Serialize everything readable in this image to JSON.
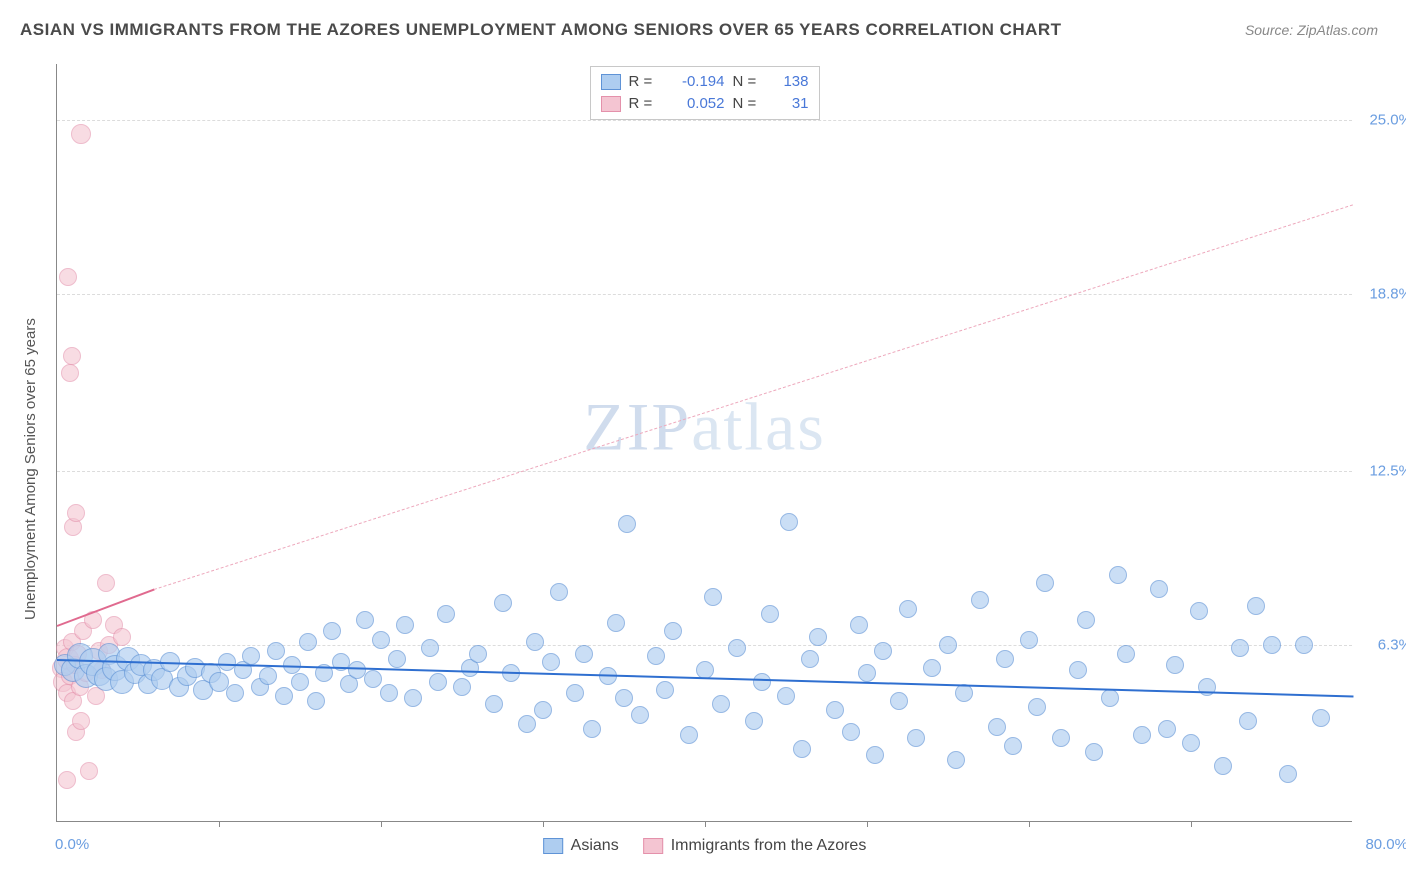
{
  "title": "ASIAN VS IMMIGRANTS FROM THE AZORES UNEMPLOYMENT AMONG SENIORS OVER 65 YEARS CORRELATION CHART",
  "source": "Source: ZipAtlas.com",
  "y_axis_label": "Unemployment Among Seniors over 65 years",
  "watermark": {
    "bold": "ZIP",
    "thin": "atlas"
  },
  "chart": {
    "type": "scatter",
    "background_color": "#ffffff",
    "grid_color": "#dcdcdc",
    "xlim": [
      0,
      80
    ],
    "ylim": [
      0,
      27
    ],
    "y_ticks": [
      {
        "v": 6.3,
        "label": "6.3%"
      },
      {
        "v": 12.5,
        "label": "12.5%"
      },
      {
        "v": 18.8,
        "label": "18.8%"
      },
      {
        "v": 25.0,
        "label": "25.0%"
      }
    ],
    "x_tick_positions": [
      10,
      20,
      30,
      40,
      50,
      60,
      70
    ],
    "x_labels": [
      {
        "v": 0,
        "label": "0.0%",
        "align": "left"
      },
      {
        "v": 80,
        "label": "80.0%",
        "align": "right"
      }
    ]
  },
  "series": {
    "asians": {
      "label": "Asians",
      "fill": "#aecdf0",
      "stroke": "#5f93d6",
      "fill_opacity": 0.65,
      "R": "-0.194",
      "N": "138",
      "trend": {
        "x1": 0,
        "y1": 5.8,
        "x2": 80,
        "y2": 4.5,
        "color": "#2f6fd0",
        "dashed": false,
        "width": 2
      },
      "points": [
        {
          "x": 0.5,
          "y": 5.6,
          "r": 11
        },
        {
          "x": 1.0,
          "y": 5.4,
          "r": 12
        },
        {
          "x": 1.4,
          "y": 5.9,
          "r": 13
        },
        {
          "x": 1.8,
          "y": 5.2,
          "r": 12
        },
        {
          "x": 2.2,
          "y": 5.7,
          "r": 14
        },
        {
          "x": 2.6,
          "y": 5.3,
          "r": 13
        },
        {
          "x": 3.0,
          "y": 5.1,
          "r": 12
        },
        {
          "x": 3.2,
          "y": 6.0,
          "r": 11
        },
        {
          "x": 3.6,
          "y": 5.5,
          "r": 13
        },
        {
          "x": 4.0,
          "y": 5.0,
          "r": 12
        },
        {
          "x": 4.4,
          "y": 5.8,
          "r": 12
        },
        {
          "x": 4.8,
          "y": 5.3,
          "r": 11
        },
        {
          "x": 5.2,
          "y": 5.6,
          "r": 11
        },
        {
          "x": 5.6,
          "y": 4.9,
          "r": 10
        },
        {
          "x": 6.0,
          "y": 5.4,
          "r": 11
        },
        {
          "x": 6.5,
          "y": 5.1,
          "r": 11
        },
        {
          "x": 7.0,
          "y": 5.7,
          "r": 10
        },
        {
          "x": 7.5,
          "y": 4.8,
          "r": 10
        },
        {
          "x": 8.0,
          "y": 5.2,
          "r": 10
        },
        {
          "x": 8.5,
          "y": 5.5,
          "r": 10
        },
        {
          "x": 9.0,
          "y": 4.7,
          "r": 10
        },
        {
          "x": 9.5,
          "y": 5.3,
          "r": 10
        },
        {
          "x": 10.0,
          "y": 5.0,
          "r": 10
        },
        {
          "x": 10.5,
          "y": 5.7,
          "r": 9
        },
        {
          "x": 11.0,
          "y": 4.6,
          "r": 9
        },
        {
          "x": 11.5,
          "y": 5.4,
          "r": 9
        },
        {
          "x": 12.0,
          "y": 5.9,
          "r": 9
        },
        {
          "x": 12.5,
          "y": 4.8,
          "r": 9
        },
        {
          "x": 13.0,
          "y": 5.2,
          "r": 9
        },
        {
          "x": 13.5,
          "y": 6.1,
          "r": 9
        },
        {
          "x": 14.0,
          "y": 4.5,
          "r": 9
        },
        {
          "x": 14.5,
          "y": 5.6,
          "r": 9
        },
        {
          "x": 15.0,
          "y": 5.0,
          "r": 9
        },
        {
          "x": 15.5,
          "y": 6.4,
          "r": 9
        },
        {
          "x": 16.0,
          "y": 4.3,
          "r": 9
        },
        {
          "x": 16.5,
          "y": 5.3,
          "r": 9
        },
        {
          "x": 17.0,
          "y": 6.8,
          "r": 9
        },
        {
          "x": 17.5,
          "y": 5.7,
          "r": 9
        },
        {
          "x": 18.0,
          "y": 4.9,
          "r": 9
        },
        {
          "x": 18.5,
          "y": 5.4,
          "r": 9
        },
        {
          "x": 19.0,
          "y": 7.2,
          "r": 9
        },
        {
          "x": 19.5,
          "y": 5.1,
          "r": 9
        },
        {
          "x": 20.0,
          "y": 6.5,
          "r": 9
        },
        {
          "x": 20.5,
          "y": 4.6,
          "r": 9
        },
        {
          "x": 21.0,
          "y": 5.8,
          "r": 9
        },
        {
          "x": 21.5,
          "y": 7.0,
          "r": 9
        },
        {
          "x": 22.0,
          "y": 4.4,
          "r": 9
        },
        {
          "x": 23.0,
          "y": 6.2,
          "r": 9
        },
        {
          "x": 23.5,
          "y": 5.0,
          "r": 9
        },
        {
          "x": 24.0,
          "y": 7.4,
          "r": 9
        },
        {
          "x": 25.0,
          "y": 4.8,
          "r": 9
        },
        {
          "x": 25.5,
          "y": 5.5,
          "r": 9
        },
        {
          "x": 26.0,
          "y": 6.0,
          "r": 9
        },
        {
          "x": 27.0,
          "y": 4.2,
          "r": 9
        },
        {
          "x": 27.5,
          "y": 7.8,
          "r": 9
        },
        {
          "x": 28.0,
          "y": 5.3,
          "r": 9
        },
        {
          "x": 29.0,
          "y": 3.5,
          "r": 9
        },
        {
          "x": 29.5,
          "y": 6.4,
          "r": 9
        },
        {
          "x": 30.0,
          "y": 4.0,
          "r": 9
        },
        {
          "x": 30.5,
          "y": 5.7,
          "r": 9
        },
        {
          "x": 31.0,
          "y": 8.2,
          "r": 9
        },
        {
          "x": 32.0,
          "y": 4.6,
          "r": 9
        },
        {
          "x": 32.5,
          "y": 6.0,
          "r": 9
        },
        {
          "x": 33.0,
          "y": 3.3,
          "r": 9
        },
        {
          "x": 34.0,
          "y": 5.2,
          "r": 9
        },
        {
          "x": 34.5,
          "y": 7.1,
          "r": 9
        },
        {
          "x": 35.0,
          "y": 4.4,
          "r": 9
        },
        {
          "x": 35.2,
          "y": 10.6,
          "r": 9
        },
        {
          "x": 36.0,
          "y": 3.8,
          "r": 9
        },
        {
          "x": 37.0,
          "y": 5.9,
          "r": 9
        },
        {
          "x": 37.5,
          "y": 4.7,
          "r": 9
        },
        {
          "x": 38.0,
          "y": 6.8,
          "r": 9
        },
        {
          "x": 39.0,
          "y": 3.1,
          "r": 9
        },
        {
          "x": 40.0,
          "y": 5.4,
          "r": 9
        },
        {
          "x": 40.5,
          "y": 8.0,
          "r": 9
        },
        {
          "x": 41.0,
          "y": 4.2,
          "r": 9
        },
        {
          "x": 42.0,
          "y": 6.2,
          "r": 9
        },
        {
          "x": 43.0,
          "y": 3.6,
          "r": 9
        },
        {
          "x": 43.5,
          "y": 5.0,
          "r": 9
        },
        {
          "x": 44.0,
          "y": 7.4,
          "r": 9
        },
        {
          "x": 45.0,
          "y": 4.5,
          "r": 9
        },
        {
          "x": 45.2,
          "y": 10.7,
          "r": 9
        },
        {
          "x": 46.0,
          "y": 2.6,
          "r": 9
        },
        {
          "x": 46.5,
          "y": 5.8,
          "r": 9
        },
        {
          "x": 47.0,
          "y": 6.6,
          "r": 9
        },
        {
          "x": 48.0,
          "y": 4.0,
          "r": 9
        },
        {
          "x": 49.0,
          "y": 3.2,
          "r": 9
        },
        {
          "x": 49.5,
          "y": 7.0,
          "r": 9
        },
        {
          "x": 50.0,
          "y": 5.3,
          "r": 9
        },
        {
          "x": 50.5,
          "y": 2.4,
          "r": 9
        },
        {
          "x": 51.0,
          "y": 6.1,
          "r": 9
        },
        {
          "x": 52.0,
          "y": 4.3,
          "r": 9
        },
        {
          "x": 52.5,
          "y": 7.6,
          "r": 9
        },
        {
          "x": 53.0,
          "y": 3.0,
          "r": 9
        },
        {
          "x": 54.0,
          "y": 5.5,
          "r": 9
        },
        {
          "x": 55.0,
          "y": 6.3,
          "r": 9
        },
        {
          "x": 55.5,
          "y": 2.2,
          "r": 9
        },
        {
          "x": 56.0,
          "y": 4.6,
          "r": 9
        },
        {
          "x": 57.0,
          "y": 7.9,
          "r": 9
        },
        {
          "x": 58.0,
          "y": 3.4,
          "r": 9
        },
        {
          "x": 58.5,
          "y": 5.8,
          "r": 9
        },
        {
          "x": 59.0,
          "y": 2.7,
          "r": 9
        },
        {
          "x": 60.0,
          "y": 6.5,
          "r": 9
        },
        {
          "x": 60.5,
          "y": 4.1,
          "r": 9
        },
        {
          "x": 61.0,
          "y": 8.5,
          "r": 9
        },
        {
          "x": 62.0,
          "y": 3.0,
          "r": 9
        },
        {
          "x": 63.0,
          "y": 5.4,
          "r": 9
        },
        {
          "x": 63.5,
          "y": 7.2,
          "r": 9
        },
        {
          "x": 64.0,
          "y": 2.5,
          "r": 9
        },
        {
          "x": 65.0,
          "y": 4.4,
          "r": 9
        },
        {
          "x": 65.5,
          "y": 8.8,
          "r": 9
        },
        {
          "x": 66.0,
          "y": 6.0,
          "r": 9
        },
        {
          "x": 67.0,
          "y": 3.1,
          "r": 9
        },
        {
          "x": 68.0,
          "y": 8.3,
          "r": 9
        },
        {
          "x": 68.5,
          "y": 3.3,
          "r": 9
        },
        {
          "x": 69.0,
          "y": 5.6,
          "r": 9
        },
        {
          "x": 70.0,
          "y": 2.8,
          "r": 9
        },
        {
          "x": 70.5,
          "y": 7.5,
          "r": 9
        },
        {
          "x": 71.0,
          "y": 4.8,
          "r": 9
        },
        {
          "x": 72.0,
          "y": 2.0,
          "r": 9
        },
        {
          "x": 73.0,
          "y": 6.2,
          "r": 9
        },
        {
          "x": 73.5,
          "y": 3.6,
          "r": 9
        },
        {
          "x": 74.0,
          "y": 7.7,
          "r": 9
        },
        {
          "x": 75.0,
          "y": 6.3,
          "r": 9
        },
        {
          "x": 76.0,
          "y": 1.7,
          "r": 9
        },
        {
          "x": 77.0,
          "y": 6.3,
          "r": 9
        },
        {
          "x": 78.0,
          "y": 3.7,
          "r": 9
        }
      ]
    },
    "azores": {
      "label": "Immigrants from the Azores",
      "fill": "#f4c5d2",
      "stroke": "#e491ab",
      "fill_opacity": 0.6,
      "R": "0.052",
      "N": "31",
      "trend_solid": {
        "x1": 0,
        "y1": 7.0,
        "x2": 6,
        "y2": 8.3,
        "color": "#e06a8f",
        "dashed": false,
        "width": 2
      },
      "trend": {
        "x1": 6,
        "y1": 8.3,
        "x2": 80,
        "y2": 22.0,
        "color": "#eda8bc",
        "dashed": true,
        "width": 1
      },
      "points": [
        {
          "x": 0.3,
          "y": 5.5,
          "r": 10
        },
        {
          "x": 0.4,
          "y": 5.0,
          "r": 10
        },
        {
          "x": 0.5,
          "y": 6.2,
          "r": 9
        },
        {
          "x": 0.6,
          "y": 4.6,
          "r": 9
        },
        {
          "x": 0.7,
          "y": 5.8,
          "r": 11
        },
        {
          "x": 0.8,
          "y": 5.2,
          "r": 9
        },
        {
          "x": 0.9,
          "y": 6.4,
          "r": 9
        },
        {
          "x": 1.0,
          "y": 4.3,
          "r": 9
        },
        {
          "x": 1.1,
          "y": 5.6,
          "r": 9
        },
        {
          "x": 1.2,
          "y": 3.2,
          "r": 9
        },
        {
          "x": 1.3,
          "y": 6.0,
          "r": 9
        },
        {
          "x": 1.4,
          "y": 4.8,
          "r": 9
        },
        {
          "x": 1.5,
          "y": 3.6,
          "r": 9
        },
        {
          "x": 1.6,
          "y": 6.8,
          "r": 9
        },
        {
          "x": 1.8,
          "y": 5.3,
          "r": 9
        },
        {
          "x": 2.0,
          "y": 1.8,
          "r": 9
        },
        {
          "x": 2.2,
          "y": 7.2,
          "r": 9
        },
        {
          "x": 2.4,
          "y": 4.5,
          "r": 9
        },
        {
          "x": 2.6,
          "y": 6.1,
          "r": 9
        },
        {
          "x": 0.6,
          "y": 1.5,
          "r": 9
        },
        {
          "x": 2.8,
          "y": 5.4,
          "r": 9
        },
        {
          "x": 3.0,
          "y": 8.5,
          "r": 9
        },
        {
          "x": 3.2,
          "y": 6.3,
          "r": 9
        },
        {
          "x": 3.5,
          "y": 7.0,
          "r": 9
        },
        {
          "x": 4.0,
          "y": 6.6,
          "r": 9
        },
        {
          "x": 1.0,
          "y": 10.5,
          "r": 9
        },
        {
          "x": 1.2,
          "y": 11.0,
          "r": 9
        },
        {
          "x": 0.8,
          "y": 16.0,
          "r": 9
        },
        {
          "x": 0.9,
          "y": 16.6,
          "r": 9
        },
        {
          "x": 0.7,
          "y": 19.4,
          "r": 9
        },
        {
          "x": 1.5,
          "y": 24.5,
          "r": 10
        }
      ]
    }
  },
  "legend_top": {
    "r_label": "R =",
    "n_label": "N ="
  }
}
